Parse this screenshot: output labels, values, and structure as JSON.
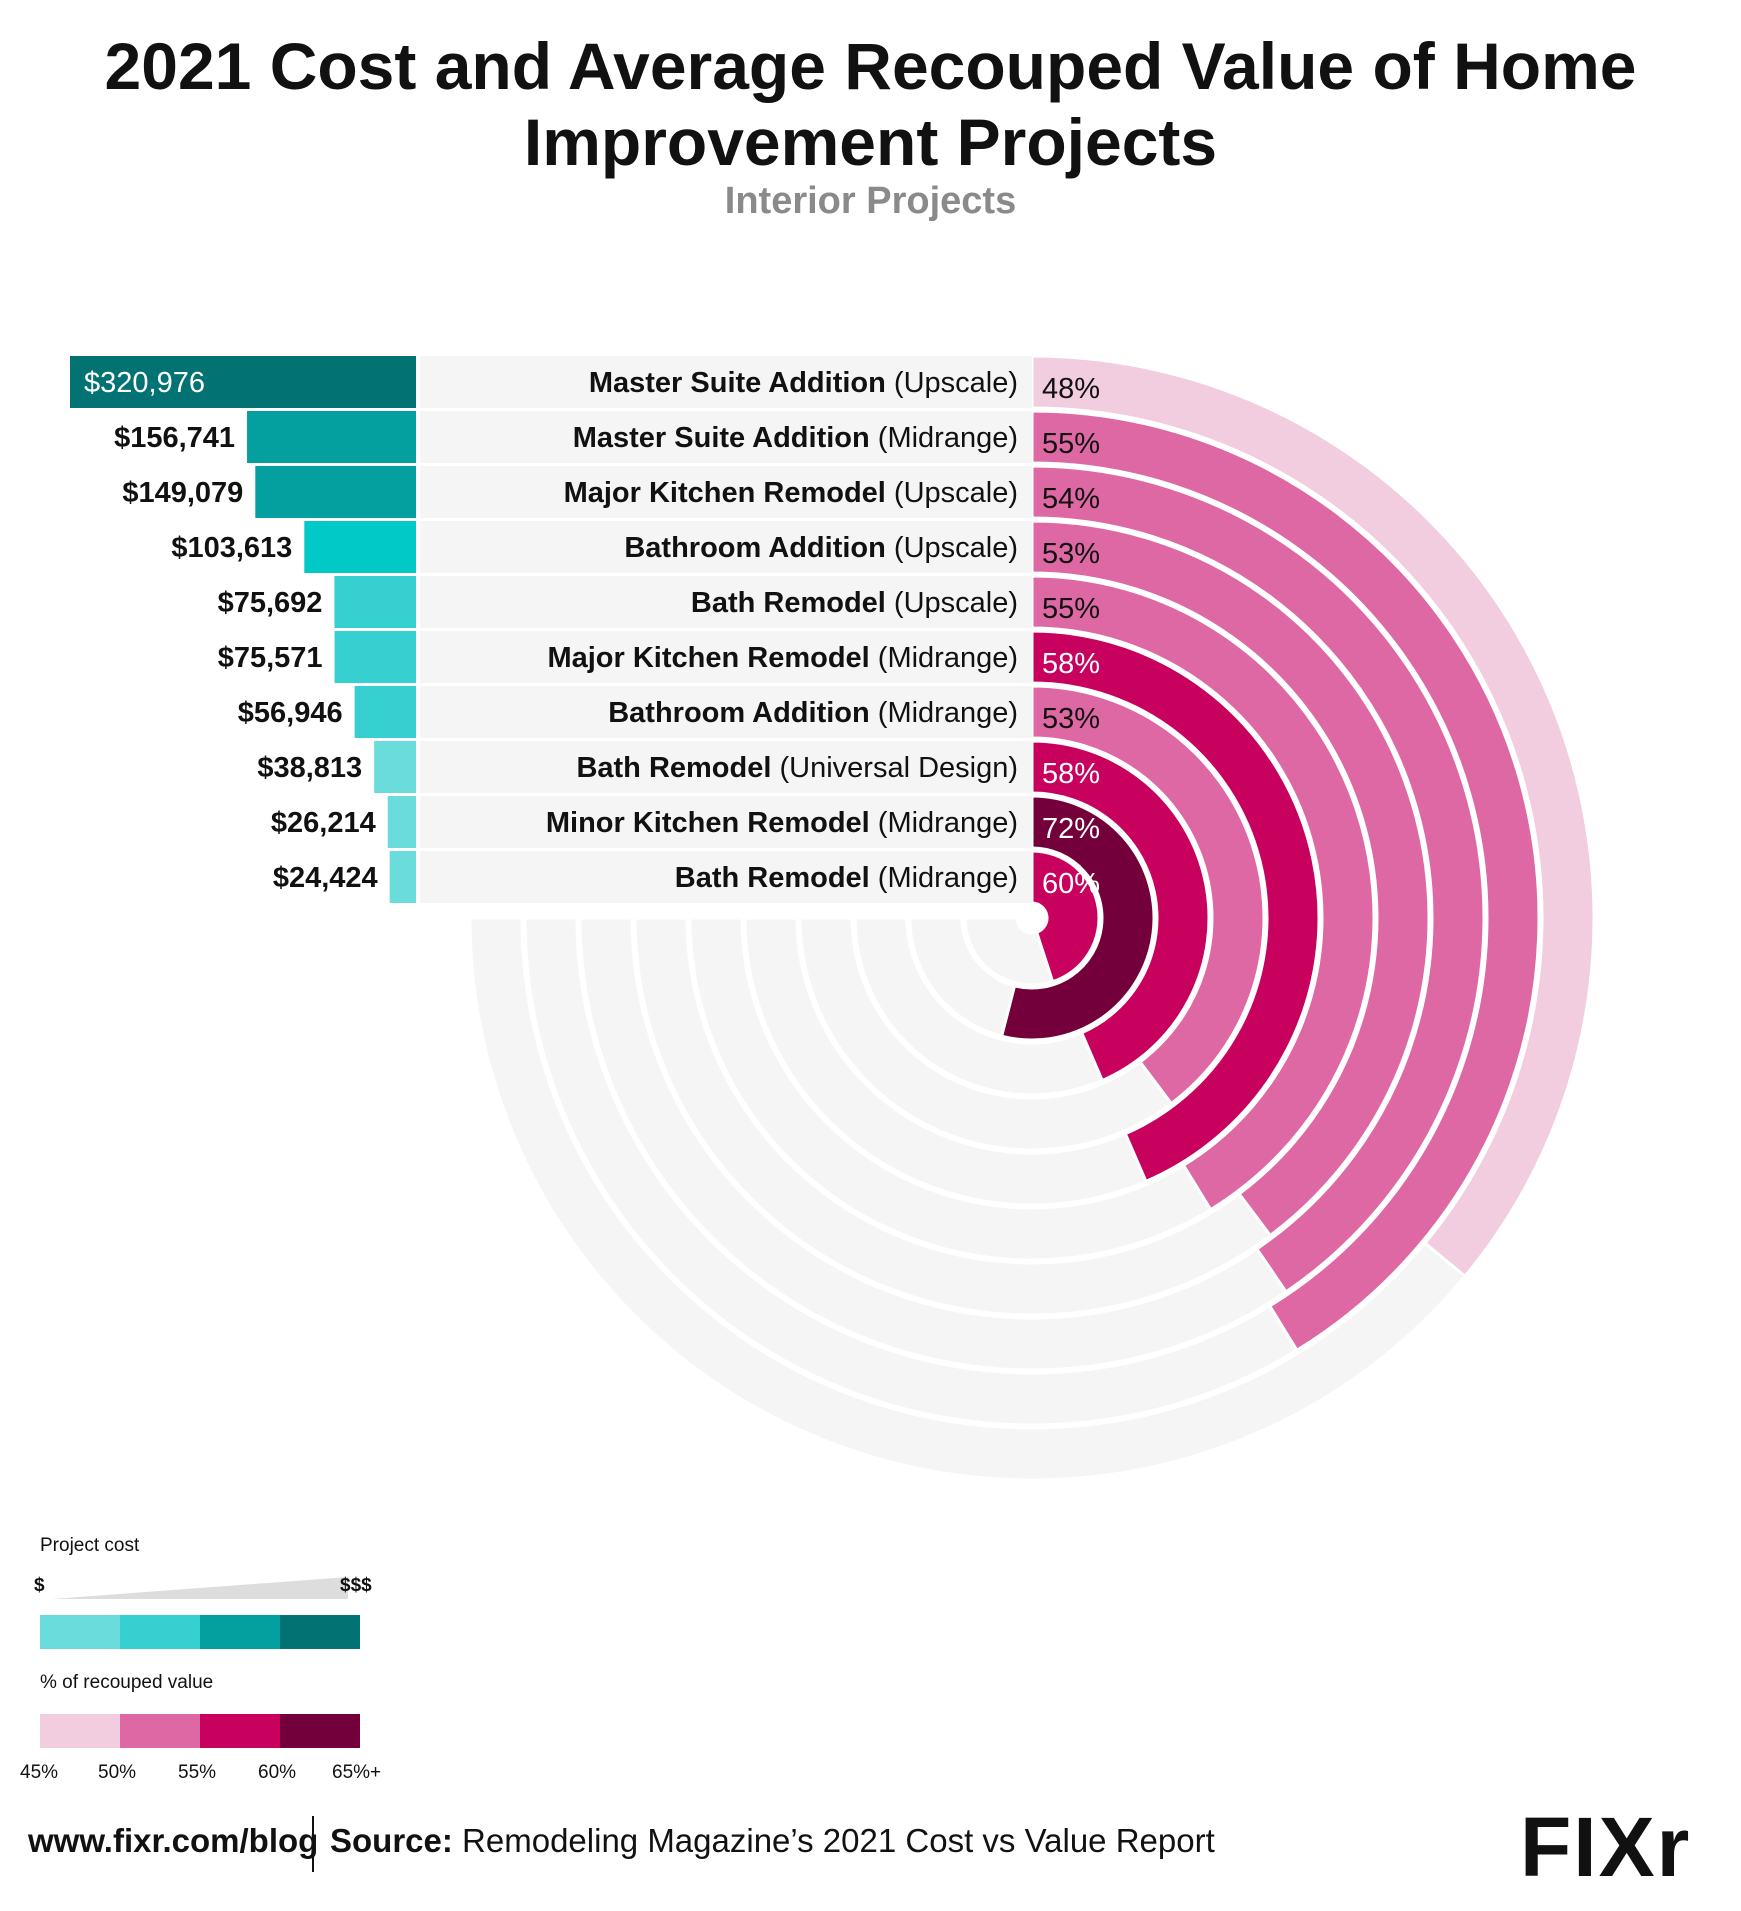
{
  "title": "2021 Cost and Average Recouped Value of Home Improvement Projects",
  "subtitle": "Interior Projects",
  "chart_data": {
    "type": "bar",
    "cost_unit": "$",
    "recouped_unit": "%",
    "cost_axis": "Project cost",
    "recouped_axis": "% of recouped value",
    "series": [
      {
        "name": "Project cost",
        "values": [
          320976,
          156741,
          149079,
          103613,
          75692,
          75571,
          56946,
          38813,
          26214,
          24424
        ]
      },
      {
        "name": "% of recouped value",
        "values": [
          48,
          55,
          54,
          53,
          55,
          58,
          53,
          58,
          72,
          60
        ]
      }
    ],
    "rows": [
      {
        "name": "Master Suite Addition",
        "variant": "(Upscale)",
        "cost_label": "$320,976",
        "cost": 320976,
        "pct_label": "48%",
        "pct": 48
      },
      {
        "name": "Master Suite Addition",
        "variant": "(Midrange)",
        "cost_label": "$156,741",
        "cost": 156741,
        "pct_label": "55%",
        "pct": 55
      },
      {
        "name": "Major Kitchen Remodel",
        "variant": "(Upscale)",
        "cost_label": "$149,079",
        "cost": 149079,
        "pct_label": "54%",
        "pct": 54
      },
      {
        "name": "Bathroom Addition",
        "variant": "(Upscale)",
        "cost_label": "$103,613",
        "cost": 103613,
        "pct_label": "53%",
        "pct": 53
      },
      {
        "name": "Bath Remodel",
        "variant": "(Upscale)",
        "cost_label": "$75,692",
        "cost": 75692,
        "pct_label": "55%",
        "pct": 55
      },
      {
        "name": "Major Kitchen Remodel",
        "variant": "(Midrange)",
        "cost_label": "$75,571",
        "cost": 75571,
        "pct_label": "58%",
        "pct": 58
      },
      {
        "name": "Bathroom Addition",
        "variant": "(Midrange)",
        "cost_label": "$56,946",
        "cost": 56946,
        "pct_label": "53%",
        "pct": 53
      },
      {
        "name": "Bath Remodel",
        "variant": "(Universal Design)",
        "cost_label": "$38,813",
        "cost": 38813,
        "pct_label": "58%",
        "pct": 58
      },
      {
        "name": "Minor Kitchen Remodel",
        "variant": "(Midrange)",
        "cost_label": "$26,214",
        "cost": 26214,
        "pct_label": "72%",
        "pct": 72
      },
      {
        "name": "Bath Remodel",
        "variant": "(Midrange)",
        "cost_label": "$24,424",
        "cost": 24424,
        "pct_label": "60%",
        "pct": 60
      }
    ],
    "radial_scale_max_pct": 100,
    "legend_placement": "bottom-left",
    "cost_colors": [
      "#6adcdc",
      "#36d0d0",
      "#04a09f",
      "#037273"
    ],
    "cost_highlight_color": "#00c9c8",
    "recouped_colors": [
      "#f2ccdf",
      "#dd68a3",
      "#c8005e",
      "#73003a"
    ],
    "track_color": "#f5f5f5"
  },
  "legend": {
    "cost_title": "Project cost",
    "cost_low": "$",
    "cost_high": "$$$",
    "recouped_title": "% of recouped value",
    "recouped_ticks": [
      "45%",
      "50%",
      "55%",
      "60%",
      "65%+"
    ]
  },
  "footer": {
    "url": "www.fixr.com/blog",
    "source_label": "Source:",
    "source_text": "Remodeling Magazine’s 2021 Cost vs Value Report",
    "logo_text": "FIXr"
  }
}
